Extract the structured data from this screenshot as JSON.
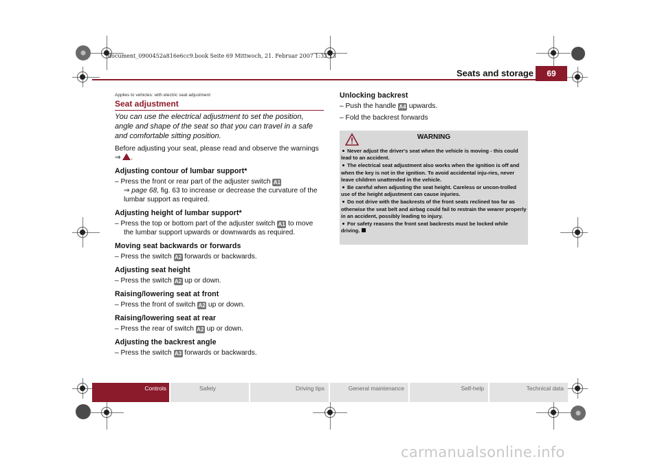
{
  "print_info": "document_0900452a816e6cc9.book  Seite 69  Mittwoch, 21. Februar 2007  1:32 13",
  "header": {
    "section_title": "Seats and storage",
    "page_number": "69"
  },
  "left_column": {
    "applies_to": "Applies to vehicles: with electric seat adjustment",
    "title": "Seat adjustment",
    "intro": "You can use the electrical adjustment to set the position, angle and shape of the seat so that you can travel in a safe and comfortable sitting position.",
    "before_text": "Before adjusting your seat, please read and observe the warnings",
    "before_arrow": "⇒",
    "before_end": ".",
    "sections": [
      {
        "heading": "Adjusting contour of lumbar support*",
        "step_pre": "– Press the front or rear part of the adjuster switch",
        "badge": "A1",
        "step_line2_arrow": "⇒",
        "step_ref": "page 68,",
        "step_post": "fig. 63 to increase or decrease the curvature of the lumbar support as required."
      },
      {
        "heading": "Adjusting height of lumbar support*",
        "step_pre": "– Press the top or bottom part of the adjuster switch",
        "badge": "A1",
        "step_post": "to move the lumbar support upwards or downwards as required."
      },
      {
        "heading": "Moving seat backwards or forwards",
        "step_pre": "– Press the switch",
        "badge": "A2",
        "step_post": "forwards or backwards."
      },
      {
        "heading": "Adjusting seat height",
        "step_pre": "– Press the switch",
        "badge": "A2",
        "step_post": "up or down."
      },
      {
        "heading": "Raising/lowering seat at front",
        "step_pre": "– Press the front of switch",
        "badge": "A2",
        "step_post": "up or down."
      },
      {
        "heading": "Raising/lowering seat at rear",
        "step_pre": "– Press the rear of switch",
        "badge": "A2",
        "step_post": "up or down."
      },
      {
        "heading": "Adjusting the backrest angle",
        "step_pre": "– Press the switch",
        "badge": "A3",
        "step_post": "forwards or backwards."
      }
    ]
  },
  "right_column": {
    "heading": "Unlocking backrest",
    "step1_pre": "– Push the handle",
    "step1_badge": "A4",
    "step1_post": "upwards.",
    "step2": "– Fold the backrest forwards"
  },
  "warning": {
    "title": "WARNING",
    "items": [
      "Never adjust the driver's seat when the vehicle is moving - this could lead to an accident.",
      "The electrical seat adjustment also works when the ignition is off and when the key is not in the ignition. To avoid accidental inju-ries, never leave children unattended in the vehicle.",
      "Be careful when adjusting the seat height. Careless or uncon-trolled use of the height adjustment can cause injuries.",
      "Do not drive with the backrests of the front seats reclined too far as otherwise the seat belt and airbag could fail to restrain the wearer properly in an accident, possibly leading to injury.",
      "For safety reasons the front seat backrests must be locked while driving."
    ]
  },
  "footer_tabs": [
    "Controls",
    "Safety",
    "Driving tips",
    "General maintenance",
    "Self-help",
    "Technical data"
  ],
  "watermark": "carmanualsonline.info",
  "colors": {
    "accent": "#8b1a2b",
    "warning_bg": "#d8d8d8",
    "tab_bg": "#e3e3e3"
  }
}
